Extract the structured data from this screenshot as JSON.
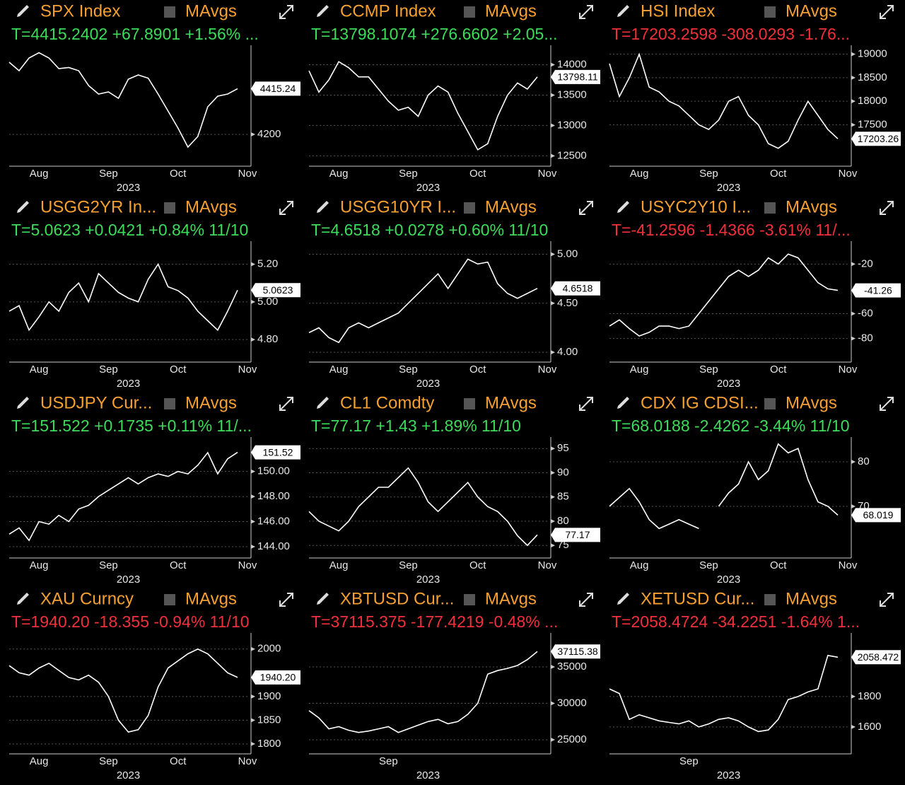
{
  "chart_data": [
    {
      "type": "line",
      "title": "SPX Index",
      "legend_label": "MAvgs",
      "subtitle": "T=4415.2402 +67.8901 +1.56% ...",
      "subtitle_color": "#3ddc5a",
      "title_color": "#f5a030",
      "x_label": "2023",
      "color": "#ffffff",
      "categories": [
        null,
        null,
        null,
        "Aug",
        null,
        null,
        null,
        null,
        null,
        null,
        "Sep",
        null,
        null,
        null,
        null,
        null,
        null,
        "Oct",
        null,
        null,
        null,
        null,
        null,
        null,
        "Nov"
      ],
      "values": [
        4540,
        4500,
        4560,
        4585,
        4560,
        4510,
        4515,
        4500,
        4430,
        4390,
        4400,
        4370,
        4460,
        4480,
        4465,
        4390,
        4310,
        4230,
        4140,
        4190,
        4330,
        4380,
        4390,
        4415.24,
        null
      ],
      "value_labels": [
        null,
        null,
        null,
        null,
        null,
        null,
        null,
        null,
        null,
        null,
        null,
        null,
        null,
        null,
        null,
        null,
        null,
        null,
        null,
        null,
        null,
        null,
        null,
        "4415.24",
        null
      ],
      "ylim": [
        4050,
        4600
      ],
      "yticks": [
        4200
      ]
    },
    {
      "type": "line",
      "title": "CCMP Index",
      "legend_label": "MAvgs",
      "subtitle": "T=13798.1074 +276.6602 +2.05...",
      "subtitle_color": "#3ddc5a",
      "title_color": "#f5a030",
      "x_label": "2023",
      "color": "#ffffff",
      "categories": [
        null,
        null,
        null,
        "Aug",
        null,
        null,
        null,
        null,
        null,
        null,
        "Sep",
        null,
        null,
        null,
        null,
        null,
        null,
        "Oct",
        null,
        null,
        null,
        null,
        null,
        null,
        "Nov"
      ],
      "values": [
        13900,
        13550,
        13750,
        14050,
        13950,
        13800,
        13800,
        13600,
        13400,
        13250,
        13300,
        13150,
        13500,
        13650,
        13550,
        13200,
        12900,
        12600,
        12700,
        13150,
        13500,
        13700,
        13600,
        13798.11,
        null
      ],
      "value_labels": [
        null,
        null,
        null,
        null,
        null,
        null,
        null,
        null,
        null,
        null,
        null,
        null,
        null,
        null,
        null,
        null,
        null,
        null,
        null,
        null,
        null,
        null,
        null,
        "13798.11",
        null
      ],
      "ylim": [
        12330,
        14250
      ],
      "yticks": [
        14000,
        13500,
        13000,
        12500
      ]
    },
    {
      "type": "line",
      "title": "HSI Index",
      "legend_label": "MAvgs",
      "subtitle": "T=17203.2598 -308.0293 -1.76...",
      "subtitle_color": "#f0303a",
      "title_color": "#f5a030",
      "x_label": "2023",
      "color": "#ffffff",
      "categories": [
        null,
        null,
        null,
        "Aug",
        null,
        null,
        null,
        null,
        null,
        null,
        "Sep",
        null,
        null,
        null,
        null,
        null,
        null,
        "Oct",
        null,
        null,
        null,
        null,
        null,
        null,
        "Nov"
      ],
      "values": [
        18800,
        18100,
        18500,
        19000,
        18300,
        18200,
        18000,
        17900,
        17700,
        17500,
        17400,
        17600,
        18000,
        18100,
        17700,
        17500,
        17100,
        17000,
        17150,
        17600,
        18000,
        17700,
        17400,
        17203.26,
        null
      ],
      "value_labels": [
        null,
        null,
        null,
        null,
        null,
        null,
        null,
        null,
        null,
        null,
        null,
        null,
        null,
        null,
        null,
        null,
        null,
        null,
        null,
        null,
        null,
        null,
        null,
        "17203.26",
        null
      ],
      "ylim": [
        16620,
        19100
      ],
      "yticks": [
        19000,
        18500,
        18000,
        17500
      ]
    },
    {
      "type": "line",
      "title": "USGG2YR In...",
      "legend_label": "MAvgs",
      "subtitle": "T=5.0623 +0.0421 +0.84% 11/10",
      "subtitle_color": "#3ddc5a",
      "title_color": "#f5a030",
      "x_label": "2023",
      "color": "#ffffff",
      "categories": [
        null,
        null,
        null,
        "Aug",
        null,
        null,
        null,
        null,
        null,
        null,
        "Sep",
        null,
        null,
        null,
        null,
        null,
        null,
        "Oct",
        null,
        null,
        null,
        null,
        null,
        null,
        "Nov"
      ],
      "values": [
        4.95,
        4.98,
        4.85,
        4.92,
        5.0,
        4.95,
        5.05,
        5.1,
        5.0,
        5.15,
        5.1,
        5.05,
        5.02,
        5.0,
        5.12,
        5.2,
        5.08,
        5.06,
        5.02,
        4.95,
        4.9,
        4.85,
        4.95,
        5.0623,
        null
      ],
      "value_labels": [
        null,
        null,
        null,
        null,
        null,
        null,
        null,
        null,
        null,
        null,
        null,
        null,
        null,
        null,
        null,
        null,
        null,
        null,
        null,
        null,
        null,
        null,
        null,
        "5.0623",
        null
      ],
      "ylim": [
        4.68,
        5.3
      ],
      "yticks": [
        {
          "value": 5.2,
          "label": "5.20"
        },
        {
          "value": 5,
          "label": "5.00"
        },
        {
          "value": 4.8,
          "label": "4.80"
        }
      ]
    },
    {
      "type": "line",
      "title": "USGG10YR I...",
      "legend_label": "MAvgs",
      "subtitle": "T=4.6518 +0.0278 +0.60% 11/10",
      "subtitle_color": "#3ddc5a",
      "title_color": "#f5a030",
      "x_label": "2023",
      "color": "#ffffff",
      "categories": [
        null,
        null,
        null,
        "Aug",
        null,
        null,
        null,
        null,
        null,
        null,
        "Sep",
        null,
        null,
        null,
        null,
        null,
        null,
        "Oct",
        null,
        null,
        null,
        null,
        null,
        null,
        "Nov"
      ],
      "values": [
        4.2,
        4.25,
        4.15,
        4.1,
        4.25,
        4.3,
        4.25,
        4.3,
        4.35,
        4.4,
        4.5,
        4.6,
        4.7,
        4.8,
        4.65,
        4.8,
        4.95,
        4.9,
        4.92,
        4.7,
        4.6,
        4.55,
        4.6,
        4.6518,
        null
      ],
      "value_labels": [
        null,
        null,
        null,
        null,
        null,
        null,
        null,
        null,
        null,
        null,
        null,
        null,
        null,
        null,
        null,
        null,
        null,
        null,
        null,
        null,
        null,
        null,
        null,
        "4.6518",
        null
      ],
      "ylim": [
        3.9,
        5.09
      ],
      "yticks": [
        {
          "value": 5,
          "label": "5.00"
        },
        {
          "value": 4.5,
          "label": "4.50"
        },
        {
          "value": 4,
          "label": "4.00"
        }
      ]
    },
    {
      "type": "line",
      "title": "USYC2Y10 I...",
      "legend_label": "MAvgs",
      "subtitle": "T=-41.2596 -1.4366 -3.61% 11/...",
      "subtitle_color": "#f0303a",
      "title_color": "#f5a030",
      "x_label": "2023",
      "color": "#ffffff",
      "categories": [
        null,
        null,
        null,
        "Aug",
        null,
        null,
        null,
        null,
        null,
        null,
        "Sep",
        null,
        null,
        null,
        null,
        null,
        null,
        "Oct",
        null,
        null,
        null,
        null,
        null,
        null,
        "Nov"
      ],
      "values": [
        -70,
        -65,
        -72,
        -78,
        -75,
        -70,
        -70,
        -72,
        -70,
        -60,
        -50,
        -40,
        -30,
        -25,
        -30,
        -25,
        -15,
        -20,
        -12,
        -15,
        -25,
        -35,
        -40,
        -41.26,
        null
      ],
      "value_labels": [
        null,
        null,
        null,
        null,
        null,
        null,
        null,
        null,
        null,
        null,
        null,
        null,
        null,
        null,
        null,
        null,
        null,
        null,
        null,
        null,
        null,
        null,
        null,
        "-41.26",
        null
      ],
      "ylim": [
        -99,
        -5
      ],
      "yticks": [
        -20,
        -60,
        -80
      ]
    },
    {
      "type": "line",
      "title": "USDJPY Cur...",
      "legend_label": "MAvgs",
      "subtitle": "T=151.522 +0.1735 +0.11% 11/...",
      "subtitle_color": "#3ddc5a",
      "title_color": "#f5a030",
      "x_label": "2023",
      "color": "#ffffff",
      "categories": [
        null,
        null,
        null,
        "Aug",
        null,
        null,
        null,
        null,
        null,
        null,
        "Sep",
        null,
        null,
        null,
        null,
        null,
        null,
        "Oct",
        null,
        null,
        null,
        null,
        null,
        null,
        "Nov"
      ],
      "values": [
        145,
        145.5,
        144.5,
        146,
        145.8,
        146.5,
        146,
        147,
        147.3,
        148,
        148.5,
        149,
        149.5,
        149,
        149.5,
        149.8,
        149.6,
        150,
        149.8,
        150.5,
        151.5,
        149.8,
        151,
        151.52,
        null
      ],
      "value_labels": [
        null,
        null,
        null,
        null,
        null,
        null,
        null,
        null,
        null,
        null,
        null,
        null,
        null,
        null,
        null,
        null,
        null,
        null,
        null,
        null,
        null,
        null,
        null,
        "151.52",
        null
      ],
      "ylim": [
        143.1,
        152.4
      ],
      "yticks": [
        {
          "value": 150,
          "label": "150.00"
        },
        {
          "value": 148,
          "label": "148.00"
        },
        {
          "value": 146,
          "label": "146.00"
        },
        {
          "value": 144,
          "label": "144.00"
        }
      ]
    },
    {
      "type": "line",
      "title": "CL1 Comdty",
      "legend_label": "MAvgs",
      "subtitle": "T=77.17 +1.43 +1.89% 11/10",
      "subtitle_color": "#3ddc5a",
      "title_color": "#f5a030",
      "x_label": "2023",
      "color": "#ffffff",
      "categories": [
        null,
        null,
        null,
        "Aug",
        null,
        null,
        null,
        null,
        null,
        null,
        "Sep",
        null,
        null,
        null,
        null,
        null,
        null,
        "Oct",
        null,
        null,
        null,
        null,
        null,
        null,
        "Nov"
      ],
      "values": [
        82,
        80,
        79,
        78,
        80,
        83,
        85,
        87,
        87,
        89,
        91,
        88,
        84,
        82,
        84,
        86,
        88,
        85,
        83,
        82,
        80,
        77,
        75,
        77.17,
        null
      ],
      "value_labels": [
        null,
        null,
        null,
        null,
        null,
        null,
        null,
        null,
        null,
        null,
        null,
        null,
        null,
        null,
        null,
        null,
        null,
        null,
        null,
        null,
        null,
        null,
        null,
        "77.17",
        null
      ],
      "ylim": [
        72.4,
        96.5
      ],
      "yticks": [
        95,
        90,
        85,
        80,
        75
      ]
    },
    {
      "type": "line",
      "title": "CDX IG CDSI...",
      "legend_label": "MAvgs",
      "subtitle": "T=68.0188 -2.4262 -3.44% 11/10",
      "subtitle_color": "#3ddc5a",
      "title_color": "#f5a030",
      "x_label": "2023",
      "color": "#ffffff",
      "categories": [
        null,
        null,
        null,
        "Aug",
        null,
        null,
        null,
        null,
        null,
        null,
        "Sep",
        null,
        null,
        null,
        null,
        null,
        null,
        "Oct",
        null,
        null,
        null,
        null,
        null,
        null,
        "Nov"
      ],
      "values": [
        70,
        72,
        74,
        71,
        67,
        65,
        66,
        67,
        66,
        65,
        null,
        70,
        73,
        75,
        80,
        76,
        78,
        84,
        82,
        83,
        76,
        71,
        70,
        68.019,
        null
      ],
      "value_labels": [
        null,
        null,
        null,
        null,
        null,
        null,
        null,
        null,
        null,
        null,
        null,
        null,
        null,
        null,
        null,
        null,
        null,
        null,
        null,
        null,
        null,
        null,
        null,
        "68.019",
        null
      ],
      "ylim": [
        58.4,
        84.6
      ],
      "yticks": [
        80,
        70
      ]
    },
    {
      "type": "line",
      "title": "XAU Curncy",
      "legend_label": "MAvgs",
      "subtitle": "T=1940.20 -18.355 -0.94% 11/10",
      "subtitle_color": "#f0303a",
      "title_color": "#f5a030",
      "x_label": "2023",
      "color": "#ffffff",
      "categories": [
        null,
        null,
        null,
        "Aug",
        null,
        null,
        null,
        null,
        null,
        null,
        "Sep",
        null,
        null,
        null,
        null,
        null,
        null,
        "Oct",
        null,
        null,
        null,
        null,
        null,
        null,
        "Nov"
      ],
      "values": [
        1965,
        1950,
        1945,
        1960,
        1970,
        1955,
        1940,
        1935,
        1945,
        1930,
        1900,
        1850,
        1825,
        1830,
        1860,
        1920,
        1960,
        1975,
        1990,
        2000,
        1990,
        1970,
        1950,
        1940.2,
        null
      ],
      "value_labels": [
        null,
        null,
        null,
        null,
        null,
        null,
        null,
        null,
        null,
        null,
        null,
        null,
        null,
        null,
        null,
        null,
        null,
        null,
        null,
        null,
        null,
        null,
        null,
        "1940.20",
        null
      ],
      "ylim": [
        1779,
        2025
      ],
      "yticks": [
        2000,
        1900,
        1850,
        1800
      ]
    },
    {
      "type": "line",
      "title": "XBTUSD Cur...",
      "legend_label": "MAvgs",
      "subtitle": "T=37115.375 -177.4219 -0.48% ...",
      "subtitle_color": "#f0303a",
      "title_color": "#f5a030",
      "x_label": "2023",
      "color": "#ffffff",
      "categories": [
        null,
        null,
        null,
        null,
        null,
        null,
        null,
        null,
        "Sep",
        null,
        null,
        null,
        null,
        null,
        null,
        null,
        null,
        null,
        null,
        null,
        null,
        null,
        null,
        null,
        null
      ],
      "values": [
        29000,
        28000,
        26500,
        26800,
        26300,
        26000,
        26200,
        26500,
        26800,
        26000,
        26500,
        27000,
        27500,
        27800,
        27200,
        27500,
        28500,
        30000,
        34000,
        34500,
        34800,
        35200,
        36000,
        37115.38,
        null
      ],
      "value_labels": [
        null,
        null,
        null,
        null,
        null,
        null,
        null,
        null,
        null,
        null,
        null,
        null,
        null,
        null,
        null,
        null,
        null,
        null,
        null,
        null,
        null,
        null,
        null,
        "37115.38",
        null
      ],
      "ylim": [
        23060,
        39080
      ],
      "yticks": [
        35000,
        30000,
        25000
      ]
    },
    {
      "type": "line",
      "title": "XETUSD Cur...",
      "legend_label": "MAvgs",
      "subtitle": "T=2058.4724 -34.2251 -1.64% 1...",
      "subtitle_color": "#f0303a",
      "title_color": "#f5a030",
      "x_label": "2023",
      "color": "#ffffff",
      "categories": [
        null,
        null,
        null,
        null,
        null,
        null,
        null,
        null,
        "Sep",
        null,
        null,
        null,
        null,
        null,
        null,
        null,
        null,
        null,
        null,
        null,
        null,
        null,
        null,
        null,
        null
      ],
      "values": [
        1850,
        1820,
        1650,
        1680,
        1660,
        1640,
        1630,
        1620,
        1640,
        1600,
        1620,
        1650,
        1660,
        1640,
        1600,
        1570,
        1580,
        1650,
        1780,
        1800,
        1830,
        1850,
        2070,
        2058.472,
        null
      ],
      "value_labels": [
        null,
        null,
        null,
        null,
        null,
        null,
        null,
        null,
        null,
        null,
        null,
        null,
        null,
        null,
        null,
        null,
        null,
        null,
        null,
        null,
        null,
        null,
        null,
        "2058.472",
        null
      ],
      "ylim": [
        1423,
        2190
      ],
      "yticks": [
        1800,
        1600
      ]
    }
  ]
}
